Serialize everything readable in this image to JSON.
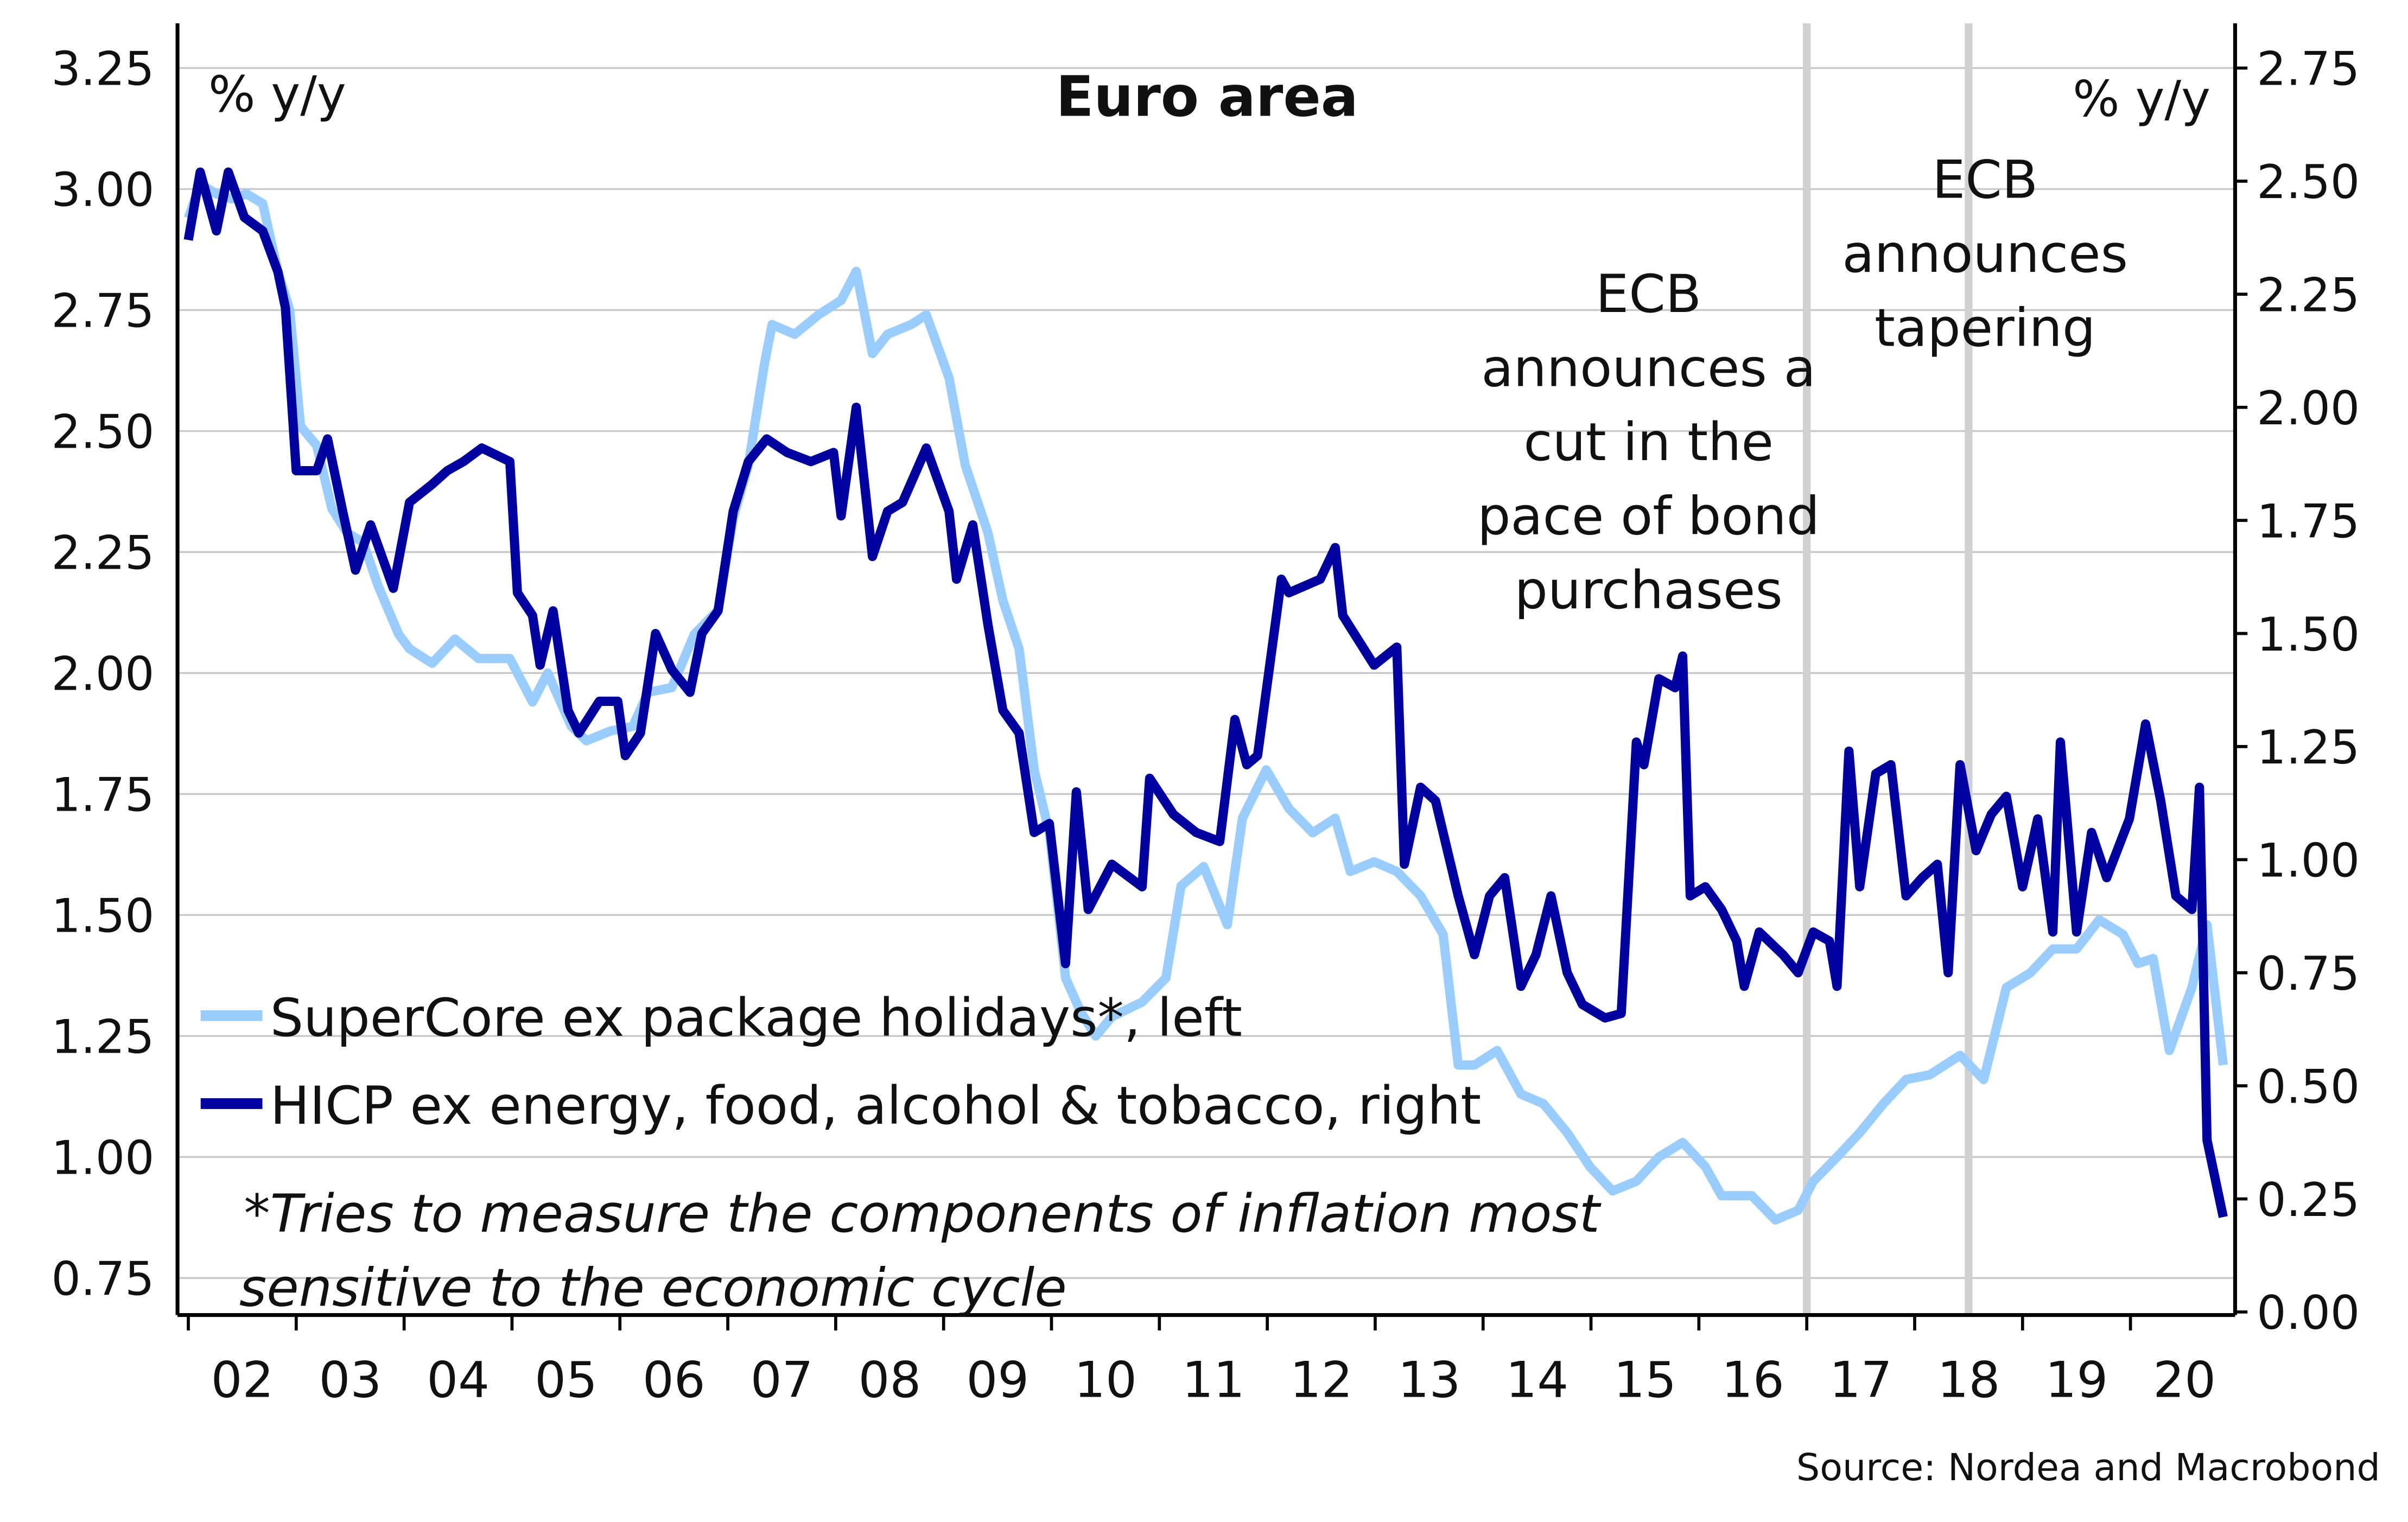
{
  "chart_data": {
    "type": "line",
    "title": "Euro area",
    "left_unit": "% y/y",
    "right_unit": "% y/y",
    "source": "Source: Nordea and Macrobond",
    "footnote": [
      "*Tries to measure the components of inflation most",
      "sensitive to the economic cycle"
    ],
    "x_tick_labels": [
      "02",
      "03",
      "04",
      "05",
      "06",
      "07",
      "08",
      "09",
      "10",
      "11",
      "12",
      "13",
      "14",
      "15",
      "16",
      "17",
      "18",
      "19",
      "20"
    ],
    "xlim": [
      2002.0,
      2021.0
    ],
    "ylim_left": [
      0.67,
      3.33
    ],
    "ylim_right": [
      0.0,
      2.8
    ],
    "left_ticks": [
      "3.25",
      "3.00",
      "2.75",
      "2.50",
      "2.25",
      "2.00",
      "1.75",
      "1.50",
      "1.25",
      "1.00",
      "0.75"
    ],
    "right_ticks": [
      "2.75",
      "2.50",
      "2.25",
      "2.00",
      "1.75",
      "1.50",
      "1.25",
      "1.00",
      "0.75",
      "0.50",
      "0.25",
      "0.00"
    ],
    "grid": "horizontal",
    "legend_position": "bottom-left",
    "annotations": [
      {
        "x": 2017.0,
        "lines": [
          "ECB",
          "announces a",
          "cut in the",
          "pace of bond",
          "purchases"
        ]
      },
      {
        "x": 2018.5,
        "lines": [
          "ECB",
          "announces",
          "tapering"
        ]
      }
    ],
    "series": [
      {
        "name": "SuperCore ex package holidays*, left",
        "axis": "left",
        "color": "#99ccff",
        "x": [
          2002.0,
          2002.11,
          2002.26,
          2002.4,
          2002.54,
          2002.69,
          2002.83,
          2002.94,
          2003.04,
          2003.19,
          2003.33,
          2003.47,
          2003.62,
          2003.76,
          2003.95,
          2004.05,
          2004.26,
          2004.47,
          2004.69,
          2004.98,
          2005.19,
          2005.33,
          2005.55,
          2005.69,
          2005.91,
          2006.12,
          2006.26,
          2006.48,
          2006.69,
          2006.91,
          2007.05,
          2007.19,
          2007.34,
          2007.41,
          2007.62,
          2007.84,
          2008.05,
          2008.19,
          2008.34,
          2008.48,
          2008.7,
          2008.84,
          2009.05,
          2009.2,
          2009.41,
          2009.55,
          2009.7,
          2009.84,
          2009.98,
          2010.13,
          2010.27,
          2010.41,
          2010.56,
          2010.84,
          2011.06,
          2011.2,
          2011.41,
          2011.63,
          2011.77,
          2011.99,
          2012.2,
          2012.42,
          2012.63,
          2012.77,
          2012.99,
          2013.2,
          2013.42,
          2013.63,
          2013.77,
          2013.92,
          2014.13,
          2014.35,
          2014.56,
          2014.78,
          2014.99,
          2015.2,
          2015.42,
          2015.63,
          2015.85,
          2016.06,
          2016.21,
          2016.49,
          2016.71,
          2016.92,
          2017.06,
          2017.28,
          2017.49,
          2017.71,
          2017.92,
          2018.14,
          2018.42,
          2018.64,
          2018.85,
          2019.07,
          2019.28,
          2019.5,
          2019.71,
          2019.93,
          2020.07,
          2020.21,
          2020.36,
          2020.57,
          2020.71,
          2020.86
        ],
        "y": [
          2.94,
          3.01,
          2.99,
          2.98,
          2.99,
          2.97,
          2.83,
          2.75,
          2.51,
          2.47,
          2.34,
          2.29,
          2.27,
          2.18,
          2.08,
          2.05,
          2.02,
          2.07,
          2.03,
          2.03,
          1.94,
          2.0,
          1.89,
          1.86,
          1.88,
          1.89,
          1.96,
          1.97,
          2.08,
          2.13,
          2.32,
          2.43,
          2.64,
          2.72,
          2.7,
          2.74,
          2.77,
          2.83,
          2.66,
          2.7,
          2.72,
          2.74,
          2.61,
          2.43,
          2.29,
          2.15,
          2.05,
          1.8,
          1.67,
          1.37,
          1.3,
          1.25,
          1.29,
          1.32,
          1.37,
          1.56,
          1.6,
          1.48,
          1.7,
          1.8,
          1.72,
          1.67,
          1.7,
          1.59,
          1.61,
          1.59,
          1.54,
          1.46,
          1.19,
          1.19,
          1.22,
          1.13,
          1.11,
          1.05,
          0.98,
          0.93,
          0.95,
          1.0,
          1.03,
          0.98,
          0.92,
          0.92,
          0.87,
          0.89,
          0.95,
          1.0,
          1.05,
          1.11,
          1.16,
          1.17,
          1.21,
          1.16,
          1.35,
          1.38,
          1.43,
          1.43,
          1.49,
          1.46,
          1.4,
          1.41,
          1.22,
          1.35,
          1.48,
          1.19
        ]
      },
      {
        "name": "HICP ex energy, food, alcohol & tobacco, right",
        "axis": "right",
        "color": "#0000a0",
        "x": [
          2002.0,
          2002.11,
          2002.26,
          2002.37,
          2002.52,
          2002.69,
          2002.83,
          2002.9,
          2003.0,
          2003.19,
          2003.29,
          2003.43,
          2003.55,
          2003.69,
          2003.9,
          2004.05,
          2004.26,
          2004.4,
          2004.55,
          2004.72,
          2004.98,
          2005.05,
          2005.19,
          2005.26,
          2005.38,
          2005.52,
          2005.62,
          2005.81,
          2005.98,
          2006.05,
          2006.19,
          2006.33,
          2006.48,
          2006.65,
          2006.76,
          2006.91,
          2007.05,
          2007.19,
          2007.36,
          2007.55,
          2007.77,
          2007.98,
          2008.05,
          2008.19,
          2008.34,
          2008.48,
          2008.62,
          2008.84,
          2009.05,
          2009.12,
          2009.27,
          2009.41,
          2009.55,
          2009.7,
          2009.84,
          2009.98,
          2010.13,
          2010.23,
          2010.34,
          2010.56,
          2010.84,
          2010.91,
          2011.13,
          2011.34,
          2011.56,
          2011.7,
          2011.81,
          2011.91,
          2012.13,
          2012.2,
          2012.49,
          2012.63,
          2012.7,
          2012.99,
          2013.2,
          2013.27,
          2013.42,
          2013.56,
          2013.77,
          2013.92,
          2014.06,
          2014.2,
          2014.35,
          2014.49,
          2014.63,
          2014.78,
          2014.92,
          2015.13,
          2015.28,
          2015.42,
          2015.49,
          2015.63,
          2015.78,
          2015.85,
          2015.92,
          2016.06,
          2016.21,
          2016.35,
          2016.42,
          2016.56,
          2016.78,
          2016.92,
          2017.06,
          2017.21,
          2017.28,
          2017.39,
          2017.49,
          2017.64,
          2017.78,
          2017.92,
          2018.07,
          2018.21,
          2018.31,
          2018.42,
          2018.57,
          2018.71,
          2018.85,
          2019.0,
          2019.14,
          2019.28,
          2019.35,
          2019.5,
          2019.64,
          2019.78,
          2019.99,
          2020.14,
          2020.28,
          2020.42,
          2020.57,
          2020.64,
          2020.71,
          2020.86
        ],
        "y": [
          2.37,
          2.52,
          2.39,
          2.52,
          2.42,
          2.39,
          2.3,
          2.22,
          1.86,
          1.86,
          1.93,
          1.77,
          1.64,
          1.74,
          1.6,
          1.79,
          1.83,
          1.86,
          1.88,
          1.91,
          1.88,
          1.59,
          1.54,
          1.43,
          1.55,
          1.33,
          1.28,
          1.35,
          1.35,
          1.23,
          1.28,
          1.5,
          1.42,
          1.37,
          1.5,
          1.55,
          1.77,
          1.88,
          1.93,
          1.9,
          1.88,
          1.9,
          1.76,
          2.0,
          1.67,
          1.77,
          1.79,
          1.91,
          1.77,
          1.62,
          1.74,
          1.52,
          1.33,
          1.28,
          1.06,
          1.08,
          0.77,
          1.15,
          0.89,
          0.99,
          0.94,
          1.18,
          1.1,
          1.06,
          1.04,
          1.31,
          1.21,
          1.23,
          1.62,
          1.59,
          1.62,
          1.69,
          1.54,
          1.43,
          1.47,
          0.99,
          1.16,
          1.13,
          0.92,
          0.79,
          0.92,
          0.96,
          0.72,
          0.79,
          0.92,
          0.75,
          0.68,
          0.65,
          0.66,
          1.26,
          1.21,
          1.4,
          1.38,
          1.45,
          0.92,
          0.94,
          0.89,
          0.82,
          0.72,
          0.84,
          0.79,
          0.75,
          0.84,
          0.82,
          0.72,
          1.24,
          0.94,
          1.19,
          1.21,
          0.92,
          0.96,
          0.99,
          0.75,
          1.21,
          1.02,
          1.1,
          1.14,
          0.94,
          1.09,
          0.84,
          1.26,
          0.84,
          1.06,
          0.96,
          1.09,
          1.3,
          1.13,
          0.92,
          0.89,
          1.16,
          0.38,
          0.21
        ]
      }
    ]
  }
}
